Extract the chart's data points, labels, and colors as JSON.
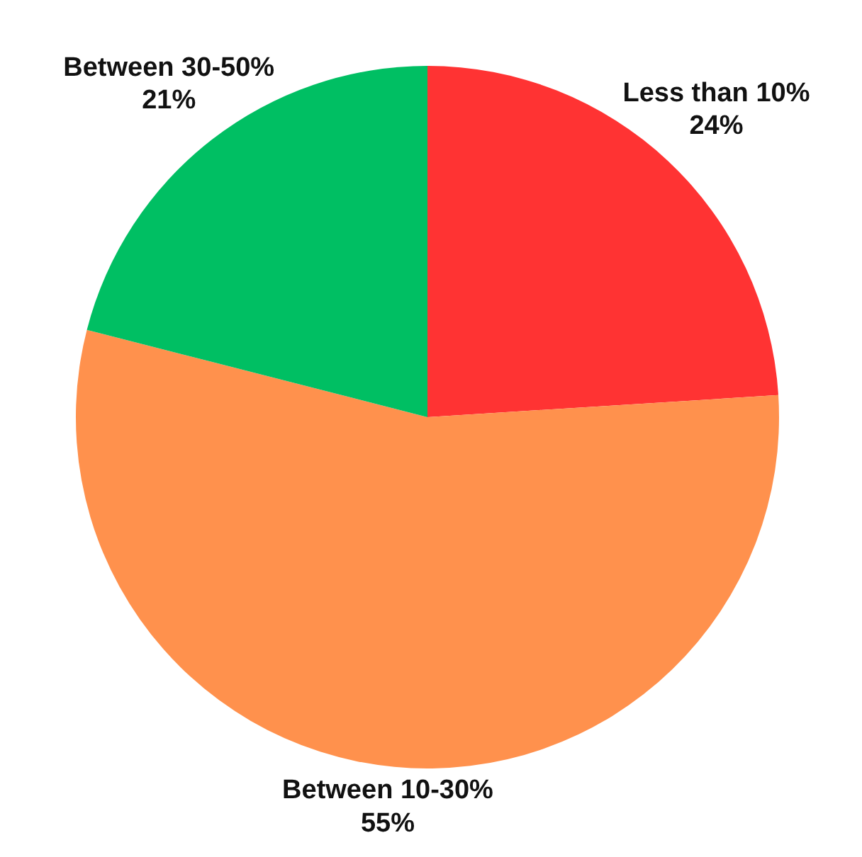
{
  "chart_data": {
    "type": "pie",
    "categories": [
      "Less than 10%",
      "Between 10-30%",
      "Between 30-50%"
    ],
    "values": [
      24,
      55,
      21
    ],
    "value_labels": [
      "24%",
      "55%",
      "21%"
    ],
    "colors": [
      "#ff3333",
      "#ff914d",
      "#00bf63"
    ]
  }
}
